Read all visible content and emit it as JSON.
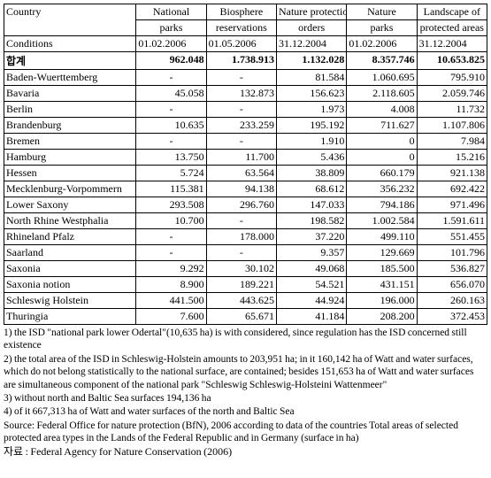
{
  "table": {
    "columns": [
      {
        "key": "country",
        "label1": "Country",
        "label2": ""
      },
      {
        "key": "np",
        "label1": "National",
        "label2": "parks"
      },
      {
        "key": "bio",
        "label1": "Biosphere",
        "label2": "reservations"
      },
      {
        "key": "npo",
        "label1": "Nature protection",
        "label2": "orders"
      },
      {
        "key": "nap",
        "label1": "Nature",
        "label2": "parks"
      },
      {
        "key": "lpa",
        "label1": "Landscape of",
        "label2": "protected areas"
      }
    ],
    "conditions": {
      "label": "Conditions",
      "np": "01.02.2006",
      "bio": "01.05.2006",
      "npo": "31.12.2004",
      "nap": "01.02.2006",
      "lpa": "31.12.2004"
    },
    "sum": {
      "label": "합계",
      "np": "962.048",
      "bio": "1.738.913",
      "npo": "1.132.028",
      "nap": "8.357.746",
      "lpa": "10.653.825"
    },
    "rows": [
      {
        "country": "Baden-Wuerttemberg",
        "np": "-",
        "bio": "-",
        "npo": "81.584",
        "nap": "1.060.695",
        "lpa": "795.910"
      },
      {
        "country": "Bavaria",
        "np": "45.058",
        "bio": "132.873",
        "npo": "156.623",
        "nap": "2.118.605",
        "lpa": "2.059.746"
      },
      {
        "country": "Berlin",
        "np": "-",
        "bio": "-",
        "npo": "1.973",
        "nap": "4.008",
        "lpa": "11.732"
      },
      {
        "country": "Brandenburg",
        "np": "10.635",
        "bio": "233.259",
        "npo": "195.192",
        "nap": "711.627",
        "lpa": "1.107.806"
      },
      {
        "country": "Bremen",
        "np": "-",
        "bio": "-",
        "npo": "1.910",
        "nap": "0",
        "lpa": "7.984"
      },
      {
        "country": "Hamburg",
        "np": "13.750",
        "bio": "11.700",
        "npo": "5.436",
        "nap": "0",
        "lpa": "15.216"
      },
      {
        "country": "Hessen",
        "np": "5.724",
        "bio": "63.564",
        "npo": "38.809",
        "nap": "660.179",
        "lpa": "921.138"
      },
      {
        "country": "Mecklenburg-Vorpommern",
        "np": "115.381",
        "bio": "94.138",
        "npo": "68.612",
        "nap": "356.232",
        "lpa": "692.422"
      },
      {
        "country": "Lower Saxony",
        "np": "293.508",
        "bio": "296.760",
        "npo": "147.033",
        "nap": "794.186",
        "lpa": "971.496"
      },
      {
        "country": "North Rhine Westphalia",
        "np": "10.700",
        "bio": "-",
        "npo": "198.582",
        "nap": "1.002.584",
        "lpa": "1.591.611"
      },
      {
        "country": "Rhineland Pfalz",
        "np": "-",
        "bio": "178.000",
        "npo": "37.220",
        "nap": "499.110",
        "lpa": "551.455"
      },
      {
        "country": "Saarland",
        "np": "-",
        "bio": "-",
        "npo": "9.357",
        "nap": "129.669",
        "lpa": "101.796"
      },
      {
        "country": "Saxonia",
        "np": "9.292",
        "bio": "30.102",
        "npo": "49.068",
        "nap": "185.500",
        "lpa": "536.827"
      },
      {
        "country": "Saxonia notion",
        "np": "8.900",
        "bio": "189.221",
        "npo": "54.521",
        "nap": "431.151",
        "lpa": "656.070"
      },
      {
        "country": "Schleswig Holstein",
        "np": "441.500",
        "bio": "443.625",
        "npo": "44.924",
        "nap": "196.000",
        "lpa": "260.163"
      },
      {
        "country": "Thuringia",
        "np": "7.600",
        "bio": "65.671",
        "npo": "41.184",
        "nap": "208.200",
        "lpa": "372.453"
      }
    ]
  },
  "notes": {
    "n1": "1)  the ISD \"national park lower Odertal\"(10,635 ha) is  with considered, since regulation has the ISD concerned still existence",
    "n2": "2)  the total area of the ISD in Schleswig-Holstein amounts to 203,951 ha; in it 160,142 ha of Watt and water surfaces, which do not belong statistically to the national surface, are contained; besides 151,653 ha of Watt and water surfaces are simultaneous component of the national park \"Schleswig Schleswig-Holsteini Wattenmeer\"",
    "n3": "3) without north and Baltic Sea surfaces 194,136 ha",
    "n4": "4) of it 667,313 ha of Watt and water surfaces of the north and Baltic Sea",
    "src": "Source: Federal Office for nature protection (BfN), 2006 according to data of the countries Total areas of selected protected area types in the Lands of the Federal Republic and in Germany (surface in ha)",
    "ref": "자료 : Federal Agency for Nature Conservation (2006)"
  }
}
